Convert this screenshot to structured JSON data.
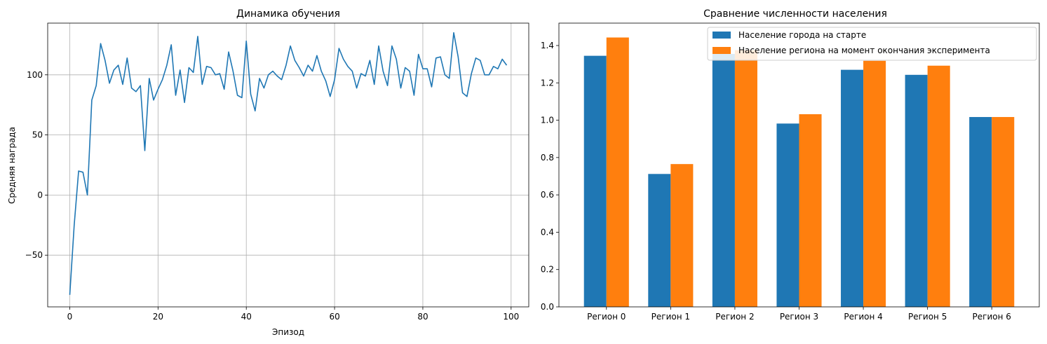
{
  "chart_data": [
    {
      "type": "line",
      "title": "Динамика обучения",
      "xlabel": "Эпизод",
      "ylabel": "Средняя награда",
      "xlim": [
        -5,
        104
      ],
      "ylim": [
        -93,
        143
      ],
      "xticks": [
        0,
        20,
        40,
        60,
        80,
        100
      ],
      "yticks": [
        -50,
        0,
        50,
        100
      ],
      "xtick_labels": [
        "0",
        "20",
        "40",
        "60",
        "80",
        "100"
      ],
      "ytick_labels": [
        "−50",
        "0",
        "50",
        "100"
      ],
      "grid": true,
      "color": "#1f77b4",
      "series": [
        {
          "name": "Средняя награда",
          "x": [
            0,
            1,
            2,
            3,
            4,
            5,
            6,
            7,
            8,
            9,
            10,
            11,
            12,
            13,
            14,
            15,
            16,
            17,
            18,
            19,
            20,
            21,
            22,
            23,
            24,
            25,
            26,
            27,
            28,
            29,
            30,
            31,
            32,
            33,
            34,
            35,
            36,
            37,
            38,
            39,
            40,
            41,
            42,
            43,
            44,
            45,
            46,
            47,
            48,
            49,
            50,
            51,
            52,
            53,
            54,
            55,
            56,
            57,
            58,
            59,
            60,
            61,
            62,
            63,
            64,
            65,
            66,
            67,
            68,
            69,
            70,
            71,
            72,
            73,
            74,
            75,
            76,
            77,
            78,
            79,
            80,
            81,
            82,
            83,
            84,
            85,
            86,
            87,
            88,
            89,
            90,
            91,
            92,
            93,
            94,
            95,
            96,
            97,
            98,
            99
          ],
          "values": [
            -83,
            -25,
            20,
            19,
            0,
            79,
            91,
            126,
            112,
            93,
            104,
            108,
            92,
            114,
            89,
            86,
            91,
            37,
            97,
            79,
            88,
            96,
            108,
            125,
            83,
            104,
            77,
            106,
            102,
            132,
            92,
            107,
            106,
            100,
            101,
            88,
            119,
            103,
            83,
            81,
            128,
            84,
            70,
            97,
            89,
            100,
            103,
            99,
            96,
            108,
            124,
            112,
            106,
            99,
            108,
            103,
            116,
            103,
            95,
            82,
            96,
            122,
            113,
            107,
            103,
            89,
            101,
            99,
            112,
            92,
            124,
            103,
            91,
            124,
            113,
            89,
            106,
            103,
            83,
            117,
            105,
            105,
            90,
            114,
            115,
            100,
            97,
            135,
            115,
            85,
            82,
            101,
            114,
            112,
            100,
            100,
            107,
            105,
            113,
            108
          ]
        }
      ]
    },
    {
      "type": "bar",
      "title": "Сравнение численности населения",
      "categories": [
        "Регион 0",
        "Регион 1",
        "Регион 2",
        "Регион 3",
        "Регион 4",
        "Регион 5",
        "Регион 6"
      ],
      "ylim": [
        0,
        1.52
      ],
      "yticks": [
        0,
        0.2,
        0.4,
        0.6,
        0.8,
        1.0,
        1.2,
        1.4
      ],
      "ytick_labels": [
        "0.0",
        "0.2",
        "0.4",
        "0.6",
        "0.8",
        "1.0",
        "1.2",
        "1.4"
      ],
      "legend_position": "top-right",
      "series": [
        {
          "name": "Население города на старте",
          "color": "#1f77b4",
          "values": [
            1.345,
            0.712,
            1.355,
            0.982,
            1.27,
            1.243,
            1.017
          ]
        },
        {
          "name": "Население региона на момент окончания эксперимента",
          "color": "#ff7f0e",
          "values": [
            1.443,
            0.765,
            1.375,
            1.032,
            1.318,
            1.292,
            1.017
          ]
        }
      ]
    }
  ]
}
